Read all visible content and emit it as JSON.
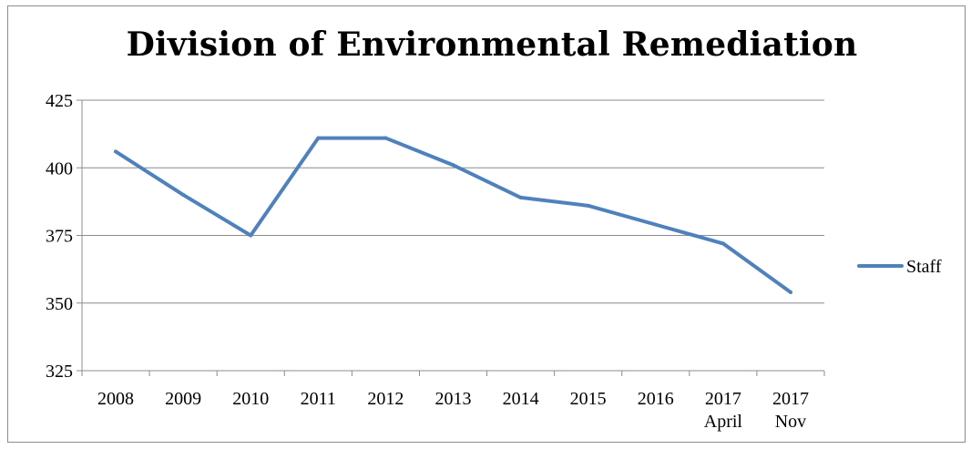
{
  "chart_data": {
    "type": "line",
    "title": "Division of Environmental Remediation",
    "xlabel": "",
    "ylabel": "",
    "categories": [
      [
        "2008"
      ],
      [
        "2009"
      ],
      [
        "2010"
      ],
      [
        "2011"
      ],
      [
        "2012"
      ],
      [
        "2013"
      ],
      [
        "2014"
      ],
      [
        "2015"
      ],
      [
        "2016"
      ],
      [
        "2017",
        "April"
      ],
      [
        "2017",
        "Nov"
      ]
    ],
    "series": [
      {
        "name": "Staff",
        "color": "#4f81bd",
        "values": [
          406,
          390,
          375,
          411,
          411,
          401,
          389,
          386,
          379,
          372,
          354
        ]
      }
    ],
    "ylim": [
      325,
      425
    ],
    "yticks": [
      325,
      350,
      375,
      400,
      425
    ],
    "grid": "horizontal",
    "legend_position": "right"
  }
}
